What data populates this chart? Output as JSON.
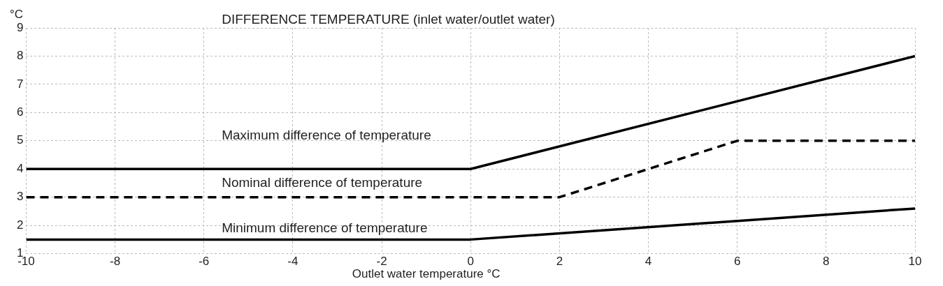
{
  "chart_data": {
    "type": "line",
    "title": "DIFFERENCE TEMPERATURE (inlet water/outlet water)",
    "xlabel": "Outlet water temperature °C",
    "ylabel": "°C",
    "series": [
      {
        "name": "Maximum difference of temperature",
        "color": "#000000",
        "x": [
          -10,
          0,
          10
        ],
        "values": [
          4,
          4,
          8
        ],
        "line_style": "solid"
      },
      {
        "name": "Nominal difference of temperature",
        "color": "#000000",
        "x": [
          -10,
          2,
          6,
          10
        ],
        "values": [
          3,
          3,
          5,
          5
        ],
        "line_style": "dashed"
      },
      {
        "name": "Minimum difference of temperature",
        "color": "#000000",
        "x": [
          -10,
          0,
          10
        ],
        "values": [
          1.5,
          1.5,
          2.6
        ],
        "line_style": "solid"
      }
    ],
    "xlim": [
      -10,
      10
    ],
    "xticks": [
      -10,
      -8,
      -6,
      -4,
      -2,
      0,
      2,
      4,
      6,
      8,
      10
    ],
    "ylim": [
      1,
      9
    ],
    "yticks": [
      1,
      2,
      3,
      4,
      5,
      6,
      7,
      8,
      9
    ],
    "grid": true,
    "legend": false,
    "marker": "none"
  }
}
